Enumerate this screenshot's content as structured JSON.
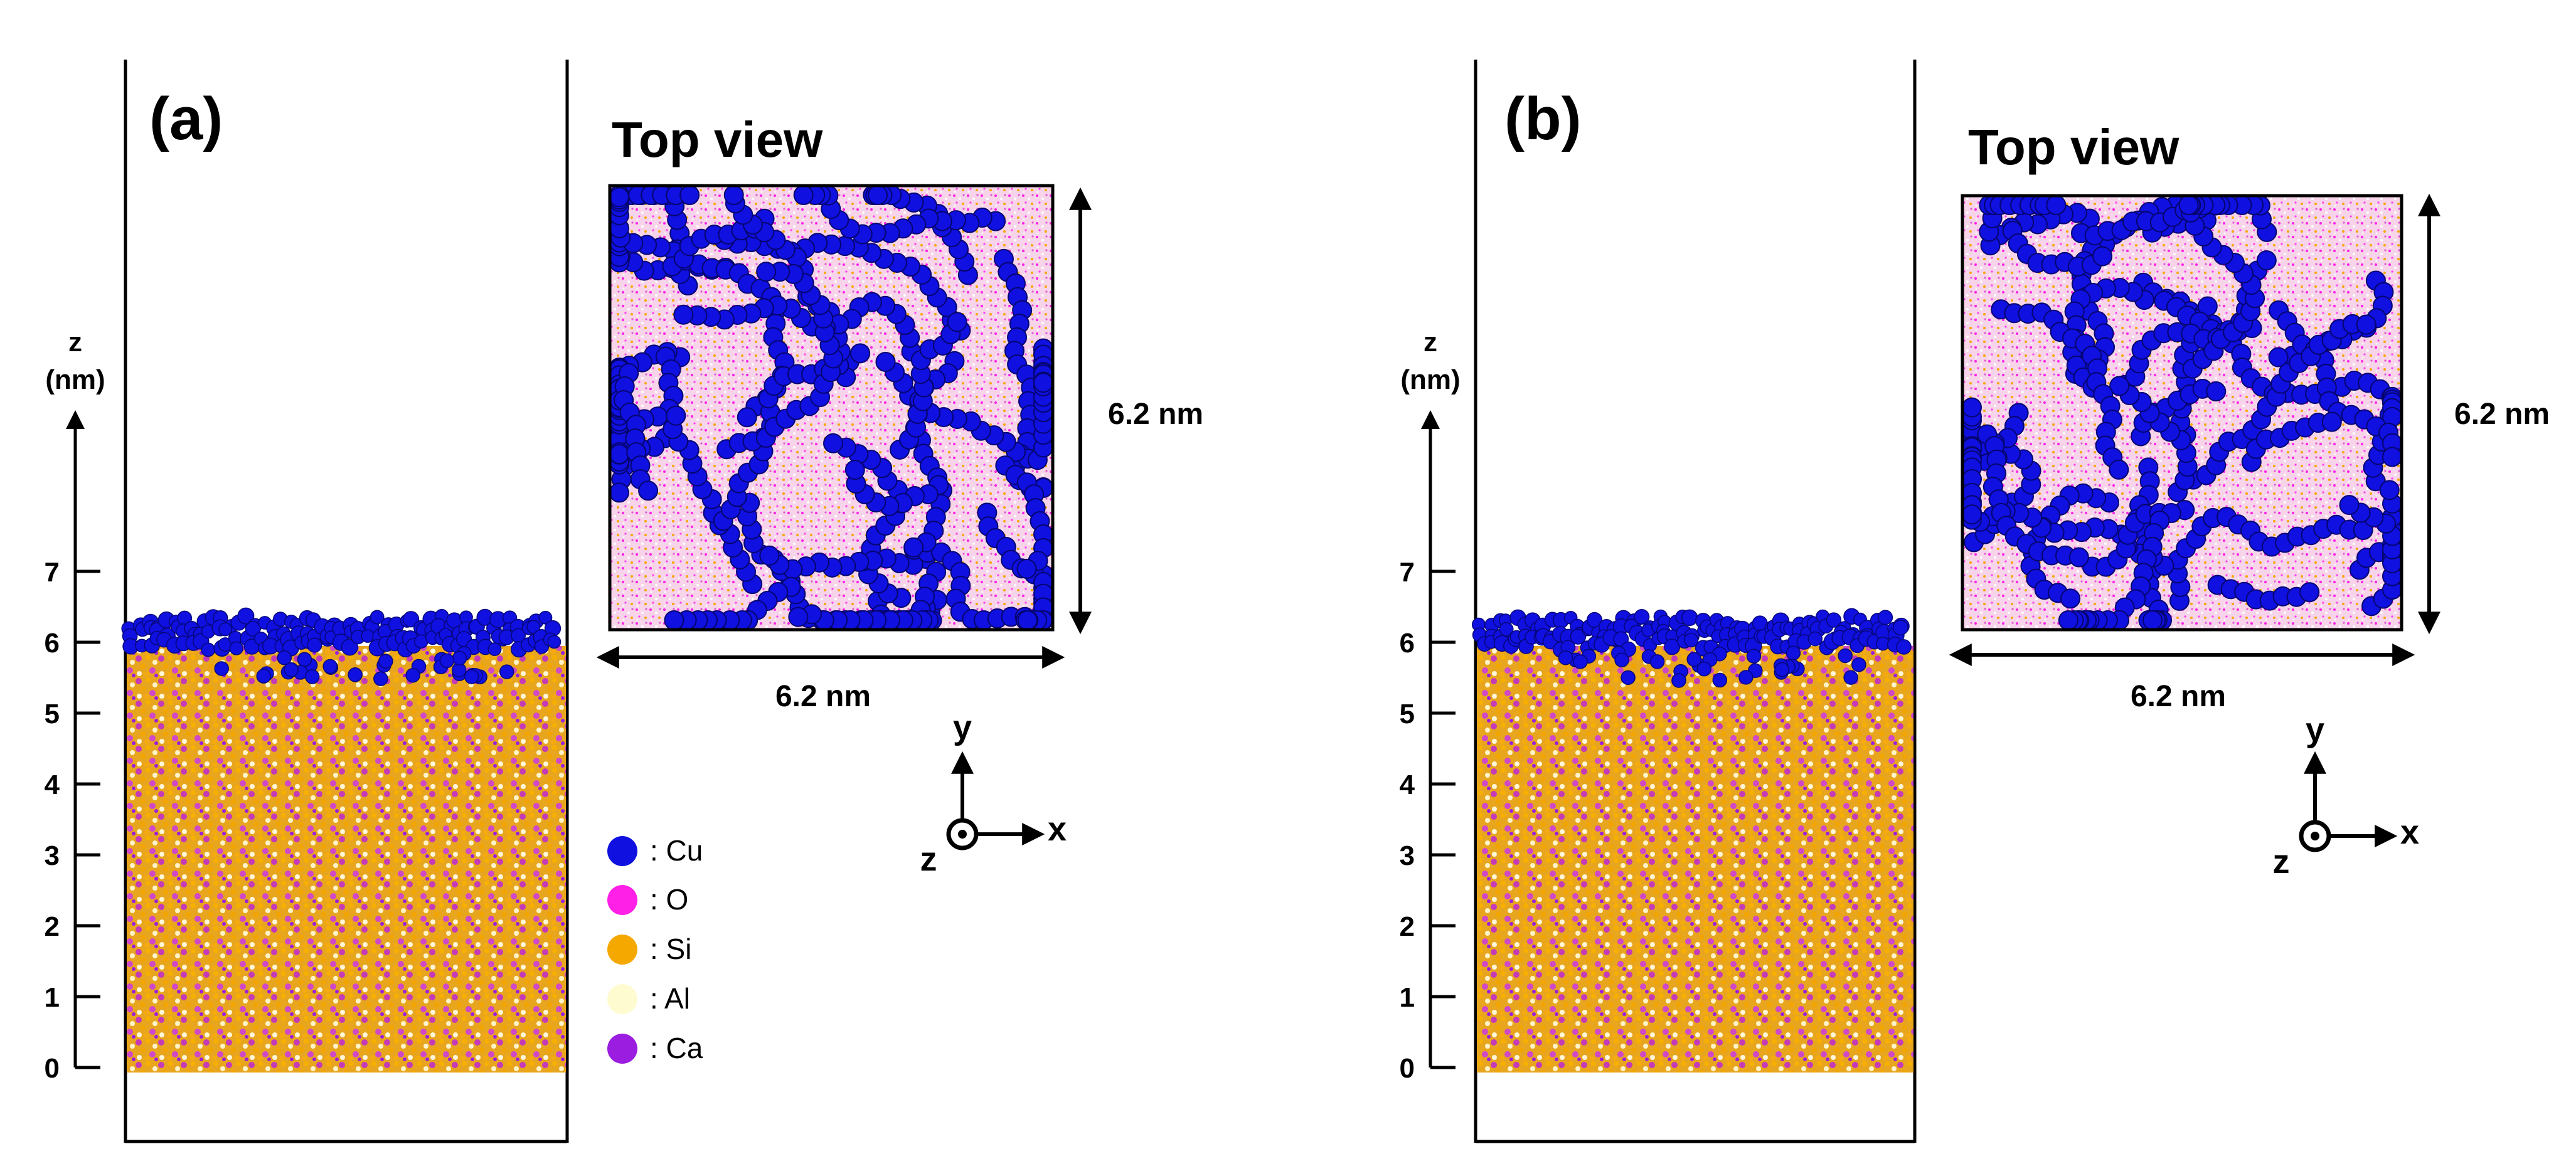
{
  "panels": [
    {
      "id": "a",
      "label": "(a)",
      "top_view_title": "Top view",
      "width_dimension": "6.2 nm",
      "height_dimension": "6.2 nm",
      "axis_title_line1": "z",
      "axis_title_line2": "(nm)",
      "ticks": [
        "0",
        "1",
        "2",
        "3",
        "4",
        "5",
        "6",
        "7"
      ],
      "axes_triad": {
        "x": "x",
        "y": "y",
        "z": "z"
      }
    },
    {
      "id": "b",
      "label": "(b)",
      "top_view_title": "Top view",
      "width_dimension": "6.2 nm",
      "height_dimension": "6.2 nm",
      "axis_title_line1": "z",
      "axis_title_line2": "(nm)",
      "ticks": [
        "0",
        "1",
        "2",
        "3",
        "4",
        "5",
        "6",
        "7"
      ],
      "axes_triad": {
        "x": "x",
        "y": "y",
        "z": "z"
      }
    }
  ],
  "legend": [
    {
      "label": ": Cu",
      "color": "#1010e0",
      "icon": "cu-atom-icon"
    },
    {
      "label": ": O",
      "color": "#ff20e8",
      "icon": "o-atom-icon"
    },
    {
      "label": ": Si",
      "color": "#f5a800",
      "icon": "si-atom-icon"
    },
    {
      "label": ": Al",
      "color": "#fffbd0",
      "icon": "al-atom-icon"
    },
    {
      "label": ": Ca",
      "color": "#9b1de0",
      "icon": "ca-atom-icon"
    }
  ],
  "colors": {
    "cu": "#1010e0",
    "o": "#ff20e8",
    "si": "#f5a800",
    "al": "#fffbd0",
    "ca": "#9b1de0",
    "substrate": "#e9a820",
    "top_view_background": "#f6cfe8"
  }
}
